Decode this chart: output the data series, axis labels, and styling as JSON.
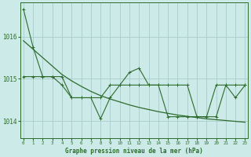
{
  "background_color": "#cceae7",
  "grid_color": "#aacccc",
  "line_color": "#2d6b2d",
  "x_labels": [
    "0",
    "1",
    "2",
    "3",
    "4",
    "5",
    "6",
    "7",
    "8",
    "9",
    "10",
    "11",
    "12",
    "13",
    "14",
    "15",
    "16",
    "17",
    "18",
    "19",
    "20",
    "21",
    "22",
    "23"
  ],
  "xlabel_text": "Graphe pression niveau de la mer (hPa)",
  "ylim": [
    1013.6,
    1016.8
  ],
  "yticks": [
    1014,
    1015,
    1016
  ],
  "series1": [
    1016.65,
    1015.75,
    1015.05,
    1015.05,
    1015.05,
    1014.55,
    1014.55,
    1014.55,
    1014.05,
    1014.55,
    1014.85,
    1015.15,
    1015.25,
    1014.85,
    1014.85,
    1014.85,
    1014.85,
    1014.85,
    1014.1,
    1014.1,
    1014.1,
    1014.85,
    1014.55,
    1014.85
  ],
  "series2": [
    1015.05,
    1015.05,
    1015.05,
    1015.05,
    1014.85,
    1014.55,
    1014.55,
    1014.55,
    1014.55,
    1014.85,
    1014.85,
    1014.85,
    1014.85,
    1014.85,
    1014.85,
    1014.1,
    1014.1,
    1014.1,
    1014.1,
    1014.1,
    1014.85,
    1014.85,
    1014.85,
    1014.85
  ],
  "trend": [
    1015.9,
    1015.7,
    1015.5,
    1015.3,
    1015.1,
    1014.95,
    1014.82,
    1014.7,
    1014.6,
    1014.52,
    1014.45,
    1014.38,
    1014.32,
    1014.27,
    1014.22,
    1014.18,
    1014.14,
    1014.11,
    1014.08,
    1014.05,
    1014.03,
    1014.01,
    1013.99,
    1013.97
  ]
}
